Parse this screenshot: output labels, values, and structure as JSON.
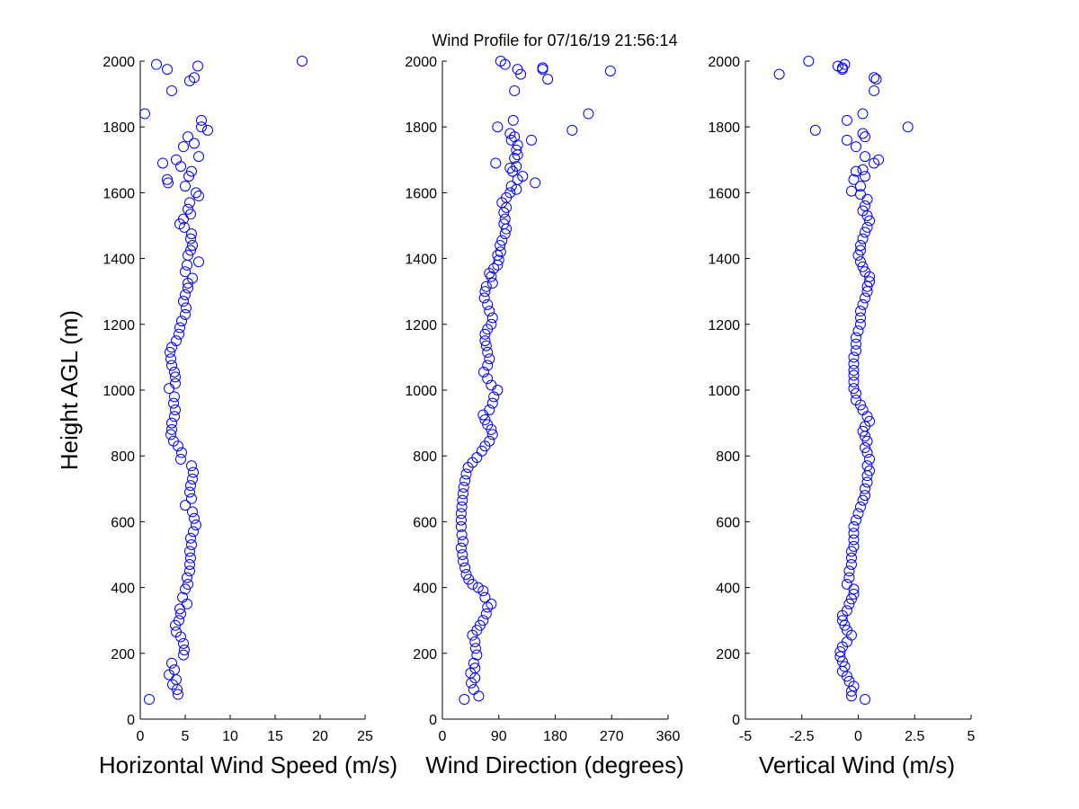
{
  "title": "Wind Profile for  07/16/19 21:56:14",
  "chart_data": [
    {
      "type": "scatter",
      "xlabel": "Horizontal Wind Speed (m/s)",
      "ylabel": "Height AGL (m)",
      "xlim": [
        0,
        25
      ],
      "ylim": [
        0,
        2000
      ],
      "xticks": [
        "0",
        "5",
        "10",
        "15",
        "20",
        "25"
      ],
      "yticks": [
        "0",
        "200",
        "400",
        "600",
        "800",
        "1000",
        "1200",
        "1400",
        "1600",
        "1800",
        "2000"
      ],
      "marker_color": "#0000ff",
      "grid": false,
      "points": [
        [
          1.0,
          60
        ],
        [
          4.2,
          75
        ],
        [
          4.1,
          90
        ],
        [
          3.6,
          105
        ],
        [
          4.0,
          120
        ],
        [
          3.2,
          135
        ],
        [
          3.8,
          150
        ],
        [
          3.5,
          170
        ],
        [
          4.8,
          195
        ],
        [
          4.9,
          210
        ],
        [
          4.8,
          230
        ],
        [
          4.5,
          250
        ],
        [
          4.0,
          265
        ],
        [
          3.9,
          285
        ],
        [
          4.3,
          300
        ],
        [
          4.5,
          320
        ],
        [
          4.4,
          335
        ],
        [
          5.2,
          350
        ],
        [
          4.7,
          370
        ],
        [
          5.0,
          395
        ],
        [
          5.3,
          410
        ],
        [
          5.2,
          430
        ],
        [
          5.5,
          450
        ],
        [
          5.5,
          470
        ],
        [
          5.6,
          490
        ],
        [
          5.5,
          510
        ],
        [
          5.7,
          530
        ],
        [
          5.6,
          550
        ],
        [
          5.9,
          570
        ],
        [
          6.2,
          590
        ],
        [
          6.0,
          610
        ],
        [
          5.8,
          630
        ],
        [
          5.0,
          650
        ],
        [
          5.7,
          670
        ],
        [
          5.5,
          690
        ],
        [
          5.6,
          710
        ],
        [
          5.8,
          730
        ],
        [
          5.9,
          750
        ],
        [
          5.7,
          770
        ],
        [
          4.5,
          790
        ],
        [
          4.6,
          810
        ],
        [
          4.2,
          830
        ],
        [
          3.7,
          845
        ],
        [
          3.4,
          865
        ],
        [
          3.5,
          880
        ],
        [
          3.5,
          900
        ],
        [
          3.8,
          920
        ],
        [
          3.9,
          940
        ],
        [
          3.7,
          960
        ],
        [
          3.8,
          980
        ],
        [
          3.2,
          1005
        ],
        [
          3.9,
          1020
        ],
        [
          3.9,
          1040
        ],
        [
          3.8,
          1055
        ],
        [
          3.5,
          1075
        ],
        [
          3.4,
          1095
        ],
        [
          3.3,
          1115
        ],
        [
          3.5,
          1130
        ],
        [
          4.0,
          1150
        ],
        [
          4.3,
          1170
        ],
        [
          4.4,
          1190
        ],
        [
          4.6,
          1210
        ],
        [
          5.0,
          1230
        ],
        [
          5.1,
          1250
        ],
        [
          4.8,
          1270
        ],
        [
          5.0,
          1290
        ],
        [
          5.3,
          1310
        ],
        [
          5.3,
          1325
        ],
        [
          5.8,
          1340
        ],
        [
          5.0,
          1360
        ],
        [
          5.2,
          1380
        ],
        [
          6.5,
          1390
        ],
        [
          5.3,
          1410
        ],
        [
          5.6,
          1425
        ],
        [
          5.8,
          1440
        ],
        [
          5.6,
          1460
        ],
        [
          5.7,
          1475
        ],
        [
          4.9,
          1495
        ],
        [
          4.4,
          1505
        ],
        [
          4.8,
          1520
        ],
        [
          5.6,
          1535
        ],
        [
          5.3,
          1550
        ],
        [
          5.5,
          1570
        ],
        [
          6.5,
          1590
        ],
        [
          6.2,
          1600
        ],
        [
          5.0,
          1620
        ],
        [
          3.1,
          1630
        ],
        [
          3.0,
          1640
        ],
        [
          5.4,
          1650
        ],
        [
          5.7,
          1665
        ],
        [
          4.5,
          1680
        ],
        [
          2.5,
          1690
        ],
        [
          4.0,
          1700
        ],
        [
          6.5,
          1710
        ],
        [
          4.8,
          1740
        ],
        [
          6.0,
          1750
        ],
        [
          5.3,
          1770
        ],
        [
          7.5,
          1790
        ],
        [
          6.8,
          1800
        ],
        [
          6.8,
          1820
        ],
        [
          0.5,
          1840
        ],
        [
          3.5,
          1910
        ],
        [
          5.5,
          1940
        ],
        [
          6.0,
          1950
        ],
        [
          3.0,
          1975
        ],
        [
          6.4,
          1985
        ],
        [
          1.8,
          1990
        ],
        [
          18.0,
          2000
        ]
      ]
    },
    {
      "type": "scatter",
      "xlabel": "Wind Direction (degrees)",
      "ylabel": "",
      "xlim": [
        0,
        360
      ],
      "ylim": [
        0,
        2000
      ],
      "xticks": [
        "0",
        "90",
        "180",
        "270",
        "360"
      ],
      "yticks": [
        "0",
        "200",
        "400",
        "600",
        "800",
        "1000",
        "1200",
        "1400",
        "1600",
        "1800",
        "2000"
      ],
      "marker_color": "#0000ff",
      "grid": false,
      "points": [
        [
          35,
          60
        ],
        [
          58,
          70
        ],
        [
          50,
          90
        ],
        [
          46,
          110
        ],
        [
          52,
          125
        ],
        [
          45,
          140
        ],
        [
          52,
          155
        ],
        [
          50,
          170
        ],
        [
          55,
          195
        ],
        [
          53,
          215
        ],
        [
          52,
          235
        ],
        [
          48,
          255
        ],
        [
          55,
          270
        ],
        [
          60,
          285
        ],
        [
          65,
          300
        ],
        [
          70,
          320
        ],
        [
          72,
          340
        ],
        [
          78,
          350
        ],
        [
          68,
          370
        ],
        [
          65,
          390
        ],
        [
          57,
          400
        ],
        [
          48,
          410
        ],
        [
          42,
          425
        ],
        [
          38,
          440
        ],
        [
          36,
          460
        ],
        [
          33,
          480
        ],
        [
          32,
          500
        ],
        [
          30,
          520
        ],
        [
          33,
          540
        ],
        [
          31,
          560
        ],
        [
          30,
          585
        ],
        [
          30,
          605
        ],
        [
          30,
          625
        ],
        [
          31,
          645
        ],
        [
          32,
          665
        ],
        [
          33,
          685
        ],
        [
          34,
          705
        ],
        [
          36,
          725
        ],
        [
          38,
          745
        ],
        [
          41,
          765
        ],
        [
          48,
          780
        ],
        [
          55,
          795
        ],
        [
          63,
          815
        ],
        [
          68,
          830
        ],
        [
          75,
          845
        ],
        [
          80,
          865
        ],
        [
          78,
          880
        ],
        [
          72,
          895
        ],
        [
          68,
          910
        ],
        [
          65,
          925
        ],
        [
          75,
          940
        ],
        [
          80,
          960
        ],
        [
          82,
          980
        ],
        [
          88,
          1000
        ],
        [
          78,
          1015
        ],
        [
          72,
          1035
        ],
        [
          66,
          1055
        ],
        [
          72,
          1075
        ],
        [
          75,
          1095
        ],
        [
          72,
          1115
        ],
        [
          70,
          1135
        ],
        [
          68,
          1150
        ],
        [
          68,
          1170
        ],
        [
          72,
          1185
        ],
        [
          78,
          1200
        ],
        [
          80,
          1220
        ],
        [
          75,
          1240
        ],
        [
          72,
          1260
        ],
        [
          67,
          1280
        ],
        [
          68,
          1300
        ],
        [
          70,
          1315
        ],
        [
          80,
          1325
        ],
        [
          78,
          1345
        ],
        [
          75,
          1355
        ],
        [
          82,
          1370
        ],
        [
          88,
          1380
        ],
        [
          90,
          1395
        ],
        [
          88,
          1410
        ],
        [
          93,
          1420
        ],
        [
          92,
          1440
        ],
        [
          95,
          1455
        ],
        [
          100,
          1475
        ],
        [
          102,
          1490
        ],
        [
          98,
          1505
        ],
        [
          100,
          1520
        ],
        [
          98,
          1540
        ],
        [
          102,
          1555
        ],
        [
          95,
          1570
        ],
        [
          102,
          1585
        ],
        [
          108,
          1600
        ],
        [
          110,
          1620
        ],
        [
          118,
          1610
        ],
        [
          120,
          1640
        ],
        [
          148,
          1630
        ],
        [
          128,
          1650
        ],
        [
          112,
          1665
        ],
        [
          108,
          1675
        ],
        [
          118,
          1680
        ],
        [
          85,
          1690
        ],
        [
          115,
          1705
        ],
        [
          120,
          1715
        ],
        [
          118,
          1730
        ],
        [
          120,
          1745
        ],
        [
          110,
          1760
        ],
        [
          115,
          1770
        ],
        [
          108,
          1780
        ],
        [
          88,
          1800
        ],
        [
          142,
          1760
        ],
        [
          207,
          1790
        ],
        [
          113,
          1820
        ],
        [
          233,
          1840
        ],
        [
          115,
          1910
        ],
        [
          125,
          1960
        ],
        [
          160,
          1975
        ],
        [
          168,
          1945
        ],
        [
          120,
          1975
        ],
        [
          160,
          1980
        ],
        [
          268,
          1970
        ],
        [
          100,
          1990
        ],
        [
          93,
          2000
        ]
      ]
    },
    {
      "type": "scatter",
      "xlabel": "Vertical Wind (m/s)",
      "ylabel": "",
      "xlim": [
        -5,
        5
      ],
      "ylim": [
        0,
        2000
      ],
      "xticks": [
        "-5",
        "-2.5",
        "0",
        "2.5",
        "5"
      ],
      "yticks": [
        "0",
        "200",
        "400",
        "600",
        "800",
        "1000",
        "1200",
        "1400",
        "1600",
        "1800",
        "2000"
      ],
      "marker_color": "#0000ff",
      "grid": false,
      "points": [
        [
          0.3,
          60
        ],
        [
          -0.3,
          70
        ],
        [
          -0.3,
          85
        ],
        [
          -0.2,
          100
        ],
        [
          -0.4,
          115
        ],
        [
          -0.5,
          130
        ],
        [
          -0.7,
          145
        ],
        [
          -0.6,
          160
        ],
        [
          -0.7,
          175
        ],
        [
          -0.8,
          190
        ],
        [
          -0.8,
          205
        ],
        [
          -0.7,
          220
        ],
        [
          -0.5,
          235
        ],
        [
          -0.3,
          255
        ],
        [
          -0.5,
          270
        ],
        [
          -0.6,
          285
        ],
        [
          -0.7,
          300
        ],
        [
          -0.7,
          315
        ],
        [
          -0.5,
          330
        ],
        [
          -0.4,
          350
        ],
        [
          -0.3,
          365
        ],
        [
          -0.2,
          380
        ],
        [
          -0.2,
          395
        ],
        [
          -0.5,
          410
        ],
        [
          -0.4,
          430
        ],
        [
          -0.4,
          450
        ],
        [
          -0.3,
          470
        ],
        [
          -0.3,
          490
        ],
        [
          -0.3,
          510
        ],
        [
          -0.2,
          525
        ],
        [
          -0.2,
          545
        ],
        [
          -0.2,
          565
        ],
        [
          -0.2,
          585
        ],
        [
          -0.1,
          605
        ],
        [
          0.0,
          625
        ],
        [
          0.1,
          645
        ],
        [
          0.2,
          665
        ],
        [
          0.3,
          680
        ],
        [
          0.3,
          700
        ],
        [
          0.4,
          720
        ],
        [
          0.4,
          740
        ],
        [
          0.5,
          755
        ],
        [
          0.4,
          770
        ],
        [
          0.5,
          790
        ],
        [
          0.4,
          810
        ],
        [
          0.3,
          825
        ],
        [
          0.4,
          845
        ],
        [
          0.3,
          860
        ],
        [
          0.2,
          875
        ],
        [
          0.3,
          890
        ],
        [
          0.5,
          905
        ],
        [
          0.4,
          920
        ],
        [
          0.2,
          940
        ],
        [
          0.1,
          955
        ],
        [
          -0.1,
          970
        ],
        [
          -0.1,
          990
        ],
        [
          -0.2,
          1005
        ],
        [
          -0.2,
          1025
        ],
        [
          -0.2,
          1045
        ],
        [
          -0.2,
          1060
        ],
        [
          -0.2,
          1080
        ],
        [
          -0.2,
          1100
        ],
        [
          -0.1,
          1120
        ],
        [
          -0.1,
          1140
        ],
        [
          -0.1,
          1160
        ],
        [
          0.0,
          1180
        ],
        [
          0.1,
          1200
        ],
        [
          0.1,
          1220
        ],
        [
          0.1,
          1240
        ],
        [
          0.2,
          1260
        ],
        [
          0.3,
          1280
        ],
        [
          0.4,
          1300
        ],
        [
          0.4,
          1315
        ],
        [
          0.5,
          1330
        ],
        [
          0.5,
          1345
        ],
        [
          0.3,
          1360
        ],
        [
          0.2,
          1375
        ],
        [
          0.1,
          1390
        ],
        [
          0.0,
          1410
        ],
        [
          0.1,
          1425
        ],
        [
          0.1,
          1440
        ],
        [
          0.2,
          1460
        ],
        [
          0.3,
          1480
        ],
        [
          0.4,
          1495
        ],
        [
          0.5,
          1515
        ],
        [
          0.4,
          1530
        ],
        [
          0.2,
          1545
        ],
        [
          0.3,
          1560
        ],
        [
          0.4,
          1580
        ],
        [
          0.1,
          1595
        ],
        [
          -0.3,
          1605
        ],
        [
          0.1,
          1620
        ],
        [
          -0.2,
          1640
        ],
        [
          0.3,
          1650
        ],
        [
          -0.1,
          1665
        ],
        [
          0.2,
          1670
        ],
        [
          0.7,
          1690
        ],
        [
          0.9,
          1700
        ],
        [
          0.3,
          1710
        ],
        [
          -0.1,
          1740
        ],
        [
          -0.5,
          1760
        ],
        [
          0.3,
          1770
        ],
        [
          0.2,
          1780
        ],
        [
          -1.9,
          1790
        ],
        [
          2.2,
          1800
        ],
        [
          -0.5,
          1820
        ],
        [
          0.2,
          1840
        ],
        [
          0.7,
          1910
        ],
        [
          0.8,
          1945
        ],
        [
          0.7,
          1950
        ],
        [
          -3.5,
          1960
        ],
        [
          -0.7,
          1975
        ],
        [
          -0.7,
          1980
        ],
        [
          -0.9,
          1985
        ],
        [
          -0.6,
          1990
        ],
        [
          -2.2,
          2000
        ]
      ]
    }
  ]
}
